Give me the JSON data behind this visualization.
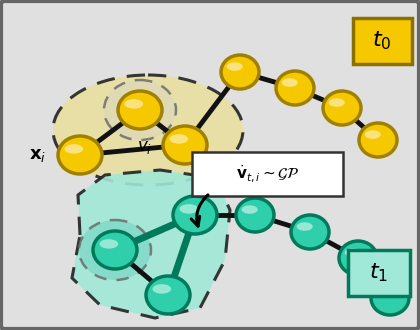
{
  "bg_color": "#c8c8c8",
  "panel_color": "#e0e0e0",
  "gold_node_color": "#f5c800",
  "gold_node_edge": "#a08000",
  "gold_node_highlight": "#fff0a0",
  "gold_fill_ellipse": "#e8dfa0",
  "teal_node_color": "#2ecfaa",
  "teal_node_edge": "#007a5a",
  "teal_node_highlight": "#a0fff0",
  "teal_fill_ellipse": "#a0e8d8",
  "edge_color": "#111111",
  "t0_box_color": "#f5c800",
  "t0_box_edge": "#8a7000",
  "t1_box_color": "#a0e8d8",
  "t1_box_edge": "#007a5a",
  "title_t0": "$t_0$",
  "title_t1": "$t_1$",
  "label_xi": "$\\mathbf{x}_i$",
  "label_vi": "$v_i$",
  "annotation": "$\\dot{\\mathbf{v}}_{t,i} \\sim \\mathcal{GP}$",
  "figw": 4.2,
  "figh": 3.3,
  "dpi": 100
}
